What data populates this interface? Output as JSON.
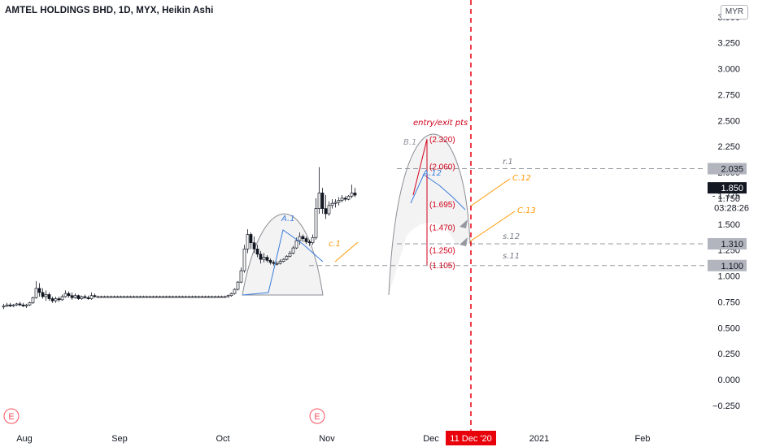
{
  "header": {
    "title": "AMTEL HOLDINGS BHD, 1D, MYX, Heikin Ashi",
    "currency": "MYR"
  },
  "chart_data": {
    "type": "candlestick",
    "chart_style": "Heikin Ashi",
    "symbol": "AMTEL HOLDINGS BHD",
    "interval": "1D",
    "exchange": "MYX",
    "ylim": [
      -0.25,
      3.5
    ],
    "y_ticks": [
      "3.500",
      "3.250",
      "3.000",
      "2.750",
      "2.500",
      "2.250",
      "2.000",
      "1.750",
      "1.500",
      "1.250",
      "1.000",
      "0.750",
      "0.500",
      "0.250",
      "0.000",
      "−0.250"
    ],
    "x_ticks": [
      "Aug",
      "Sep",
      "Oct",
      "Nov",
      "Dec",
      "2021",
      "Feb"
    ],
    "last_price": "1.850",
    "countdown": "03:28:26",
    "secondary_price": "1.775",
    "price_markers": [
      {
        "label": "2.035",
        "value": 2.035
      },
      {
        "label": "1.310",
        "value": 1.31
      },
      {
        "label": "1.100",
        "value": 1.1
      }
    ],
    "crosshair_date": "11 Dec '20",
    "annotations": {
      "entry_exit_label": "entry/exit pts",
      "levels": [
        {
          "label": "(2.320)",
          "value": 2.32
        },
        {
          "label": "(2.060)",
          "value": 2.06
        },
        {
          "label": "(1.695)",
          "value": 1.695
        },
        {
          "label": "(1.470)",
          "value": 1.47
        },
        {
          "label": "(1.250)",
          "value": 1.25
        },
        {
          "label": "(1.105)",
          "value": 1.105
        }
      ],
      "patterns": [
        {
          "label": "A.1",
          "color": "#3b7ddd"
        },
        {
          "label": "B.1",
          "color": "#9598a1"
        },
        {
          "label": "A.12",
          "color": "#3b7ddd"
        },
        {
          "label": "c.1",
          "color": "#ff9800"
        },
        {
          "label": "C.12",
          "color": "#ff9800"
        },
        {
          "label": "C.13",
          "color": "#ff9800"
        },
        {
          "label": "r.1",
          "color": "#787b86"
        },
        {
          "label": "s.12",
          "color": "#787b86"
        },
        {
          "label": "s.11",
          "color": "#787b86"
        }
      ]
    },
    "event_markers": [
      "E",
      "E"
    ],
    "candles": [
      {
        "o": 0.7,
        "h": 0.73,
        "l": 0.68,
        "c": 0.71
      },
      {
        "o": 0.71,
        "h": 0.74,
        "l": 0.7,
        "c": 0.72
      },
      {
        "o": 0.72,
        "h": 0.74,
        "l": 0.7,
        "c": 0.71
      },
      {
        "o": 0.71,
        "h": 0.73,
        "l": 0.7,
        "c": 0.72
      },
      {
        "o": 0.72,
        "h": 0.74,
        "l": 0.71,
        "c": 0.73
      },
      {
        "o": 0.73,
        "h": 0.75,
        "l": 0.71,
        "c": 0.72
      },
      {
        "o": 0.72,
        "h": 0.74,
        "l": 0.7,
        "c": 0.71
      },
      {
        "o": 0.71,
        "h": 0.73,
        "l": 0.69,
        "c": 0.72
      },
      {
        "o": 0.72,
        "h": 0.75,
        "l": 0.71,
        "c": 0.74
      },
      {
        "o": 0.74,
        "h": 0.8,
        "l": 0.73,
        "c": 0.79
      },
      {
        "o": 0.79,
        "h": 0.95,
        "l": 0.78,
        "c": 0.88
      },
      {
        "o": 0.88,
        "h": 0.93,
        "l": 0.8,
        "c": 0.84
      },
      {
        "o": 0.84,
        "h": 0.88,
        "l": 0.78,
        "c": 0.8
      },
      {
        "o": 0.8,
        "h": 0.86,
        "l": 0.76,
        "c": 0.82
      },
      {
        "o": 0.82,
        "h": 0.84,
        "l": 0.76,
        "c": 0.78
      },
      {
        "o": 0.78,
        "h": 0.8,
        "l": 0.74,
        "c": 0.76
      },
      {
        "o": 0.76,
        "h": 0.8,
        "l": 0.74,
        "c": 0.78
      },
      {
        "o": 0.78,
        "h": 0.8,
        "l": 0.75,
        "c": 0.77
      },
      {
        "o": 0.77,
        "h": 0.82,
        "l": 0.76,
        "c": 0.8
      },
      {
        "o": 0.8,
        "h": 0.86,
        "l": 0.79,
        "c": 0.83
      },
      {
        "o": 0.83,
        "h": 0.85,
        "l": 0.79,
        "c": 0.81
      },
      {
        "o": 0.81,
        "h": 0.84,
        "l": 0.77,
        "c": 0.79
      },
      {
        "o": 0.79,
        "h": 0.83,
        "l": 0.78,
        "c": 0.81
      },
      {
        "o": 0.81,
        "h": 0.82,
        "l": 0.77,
        "c": 0.78
      },
      {
        "o": 0.78,
        "h": 0.81,
        "l": 0.77,
        "c": 0.8
      },
      {
        "o": 0.8,
        "h": 0.82,
        "l": 0.78,
        "c": 0.79
      },
      {
        "o": 0.79,
        "h": 0.81,
        "l": 0.77,
        "c": 0.78
      },
      {
        "o": 0.78,
        "h": 0.84,
        "l": 0.77,
        "c": 0.81
      },
      {
        "o": 0.81,
        "h": 0.83,
        "l": 0.79,
        "c": 0.8
      },
      {
        "o": 0.8,
        "h": 0.81,
        "l": 0.79,
        "c": 0.8
      },
      {
        "o": 0.8,
        "h": 0.81,
        "l": 0.79,
        "c": 0.8
      },
      {
        "o": 0.8,
        "h": 0.81,
        "l": 0.79,
        "c": 0.8
      },
      {
        "o": 0.8,
        "h": 0.81,
        "l": 0.79,
        "c": 0.8
      },
      {
        "o": 0.8,
        "h": 0.81,
        "l": 0.79,
        "c": 0.8
      },
      {
        "o": 0.8,
        "h": 0.81,
        "l": 0.79,
        "c": 0.8
      },
      {
        "o": 0.8,
        "h": 0.81,
        "l": 0.79,
        "c": 0.8
      },
      {
        "o": 0.8,
        "h": 0.81,
        "l": 0.79,
        "c": 0.8
      },
      {
        "o": 0.8,
        "h": 0.81,
        "l": 0.79,
        "c": 0.8
      },
      {
        "o": 0.8,
        "h": 0.81,
        "l": 0.79,
        "c": 0.8
      },
      {
        "o": 0.8,
        "h": 0.81,
        "l": 0.79,
        "c": 0.8
      },
      {
        "o": 0.8,
        "h": 0.81,
        "l": 0.79,
        "c": 0.8
      },
      {
        "o": 0.8,
        "h": 0.81,
        "l": 0.79,
        "c": 0.8
      },
      {
        "o": 0.8,
        "h": 0.81,
        "l": 0.79,
        "c": 0.8
      },
      {
        "o": 0.8,
        "h": 0.81,
        "l": 0.79,
        "c": 0.8
      },
      {
        "o": 0.8,
        "h": 0.81,
        "l": 0.79,
        "c": 0.8
      },
      {
        "o": 0.8,
        "h": 0.81,
        "l": 0.79,
        "c": 0.8
      },
      {
        "o": 0.8,
        "h": 0.81,
        "l": 0.79,
        "c": 0.8
      },
      {
        "o": 0.8,
        "h": 0.81,
        "l": 0.79,
        "c": 0.8
      },
      {
        "o": 0.8,
        "h": 0.81,
        "l": 0.79,
        "c": 0.8
      },
      {
        "o": 0.8,
        "h": 0.81,
        "l": 0.79,
        "c": 0.8
      },
      {
        "o": 0.8,
        "h": 0.81,
        "l": 0.79,
        "c": 0.8
      },
      {
        "o": 0.8,
        "h": 0.81,
        "l": 0.79,
        "c": 0.8
      },
      {
        "o": 0.8,
        "h": 0.81,
        "l": 0.79,
        "c": 0.8
      },
      {
        "o": 0.8,
        "h": 0.81,
        "l": 0.79,
        "c": 0.8
      },
      {
        "o": 0.8,
        "h": 0.81,
        "l": 0.79,
        "c": 0.8
      },
      {
        "o": 0.8,
        "h": 0.81,
        "l": 0.79,
        "c": 0.8
      },
      {
        "o": 0.8,
        "h": 0.81,
        "l": 0.79,
        "c": 0.8
      },
      {
        "o": 0.8,
        "h": 0.81,
        "l": 0.79,
        "c": 0.8
      },
      {
        "o": 0.8,
        "h": 0.81,
        "l": 0.79,
        "c": 0.8
      },
      {
        "o": 0.8,
        "h": 0.81,
        "l": 0.79,
        "c": 0.8
      },
      {
        "o": 0.8,
        "h": 0.81,
        "l": 0.79,
        "c": 0.8
      },
      {
        "o": 0.8,
        "h": 0.81,
        "l": 0.79,
        "c": 0.8
      },
      {
        "o": 0.8,
        "h": 0.81,
        "l": 0.79,
        "c": 0.8
      },
      {
        "o": 0.8,
        "h": 0.81,
        "l": 0.79,
        "c": 0.8
      },
      {
        "o": 0.8,
        "h": 0.81,
        "l": 0.79,
        "c": 0.8
      },
      {
        "o": 0.8,
        "h": 0.81,
        "l": 0.79,
        "c": 0.8
      },
      {
        "o": 0.8,
        "h": 0.81,
        "l": 0.79,
        "c": 0.8
      },
      {
        "o": 0.8,
        "h": 0.81,
        "l": 0.79,
        "c": 0.8
      },
      {
        "o": 0.8,
        "h": 0.81,
        "l": 0.79,
        "c": 0.8
      },
      {
        "o": 0.8,
        "h": 0.82,
        "l": 0.79,
        "c": 0.81
      },
      {
        "o": 0.81,
        "h": 0.84,
        "l": 0.8,
        "c": 0.83
      },
      {
        "o": 0.83,
        "h": 0.88,
        "l": 0.82,
        "c": 0.87
      },
      {
        "o": 0.87,
        "h": 0.95,
        "l": 0.86,
        "c": 0.94
      },
      {
        "o": 0.94,
        "h": 1.08,
        "l": 0.93,
        "c": 1.05
      },
      {
        "o": 1.05,
        "h": 1.3,
        "l": 1.03,
        "c": 1.26
      },
      {
        "o": 1.26,
        "h": 1.45,
        "l": 1.22,
        "c": 1.4
      },
      {
        "o": 1.4,
        "h": 1.42,
        "l": 1.26,
        "c": 1.32
      },
      {
        "o": 1.32,
        "h": 1.38,
        "l": 1.22,
        "c": 1.26
      },
      {
        "o": 1.26,
        "h": 1.3,
        "l": 1.18,
        "c": 1.21
      },
      {
        "o": 1.21,
        "h": 1.24,
        "l": 1.12,
        "c": 1.16
      },
      {
        "o": 1.16,
        "h": 1.22,
        "l": 1.13,
        "c": 1.18
      },
      {
        "o": 1.18,
        "h": 1.2,
        "l": 1.13,
        "c": 1.15
      },
      {
        "o": 1.15,
        "h": 1.17,
        "l": 1.11,
        "c": 1.13
      },
      {
        "o": 1.13,
        "h": 1.15,
        "l": 1.1,
        "c": 1.12
      },
      {
        "o": 1.12,
        "h": 1.14,
        "l": 1.1,
        "c": 1.12
      },
      {
        "o": 1.12,
        "h": 1.16,
        "l": 1.11,
        "c": 1.14
      },
      {
        "o": 1.14,
        "h": 1.17,
        "l": 1.13,
        "c": 1.16
      },
      {
        "o": 1.16,
        "h": 1.2,
        "l": 1.15,
        "c": 1.19
      },
      {
        "o": 1.19,
        "h": 1.24,
        "l": 1.18,
        "c": 1.22
      },
      {
        "o": 1.22,
        "h": 1.29,
        "l": 1.21,
        "c": 1.27
      },
      {
        "o": 1.27,
        "h": 1.37,
        "l": 1.26,
        "c": 1.34
      },
      {
        "o": 1.34,
        "h": 1.42,
        "l": 1.3,
        "c": 1.38
      },
      {
        "o": 1.38,
        "h": 1.4,
        "l": 1.33,
        "c": 1.36
      },
      {
        "o": 1.36,
        "h": 1.38,
        "l": 1.31,
        "c": 1.33
      },
      {
        "o": 1.33,
        "h": 1.35,
        "l": 1.29,
        "c": 1.32
      },
      {
        "o": 1.32,
        "h": 1.4,
        "l": 1.3,
        "c": 1.37
      },
      {
        "o": 1.37,
        "h": 1.75,
        "l": 1.35,
        "c": 1.65
      },
      {
        "o": 1.65,
        "h": 2.05,
        "l": 1.6,
        "c": 1.8
      },
      {
        "o": 1.8,
        "h": 1.85,
        "l": 1.6,
        "c": 1.65
      },
      {
        "o": 1.65,
        "h": 1.78,
        "l": 1.55,
        "c": 1.6
      },
      {
        "o": 1.6,
        "h": 1.72,
        "l": 1.58,
        "c": 1.68
      },
      {
        "o": 1.68,
        "h": 1.74,
        "l": 1.65,
        "c": 1.7
      },
      {
        "o": 1.7,
        "h": 1.74,
        "l": 1.66,
        "c": 1.71
      },
      {
        "o": 1.71,
        "h": 1.76,
        "l": 1.68,
        "c": 1.73
      },
      {
        "o": 1.73,
        "h": 1.78,
        "l": 1.71,
        "c": 1.75
      },
      {
        "o": 1.75,
        "h": 1.77,
        "l": 1.72,
        "c": 1.74
      },
      {
        "o": 1.74,
        "h": 1.78,
        "l": 1.73,
        "c": 1.77
      },
      {
        "o": 1.77,
        "h": 1.88,
        "l": 1.75,
        "c": 1.8
      },
      {
        "o": 1.8,
        "h": 1.85,
        "l": 1.76,
        "c": 1.78
      }
    ]
  }
}
